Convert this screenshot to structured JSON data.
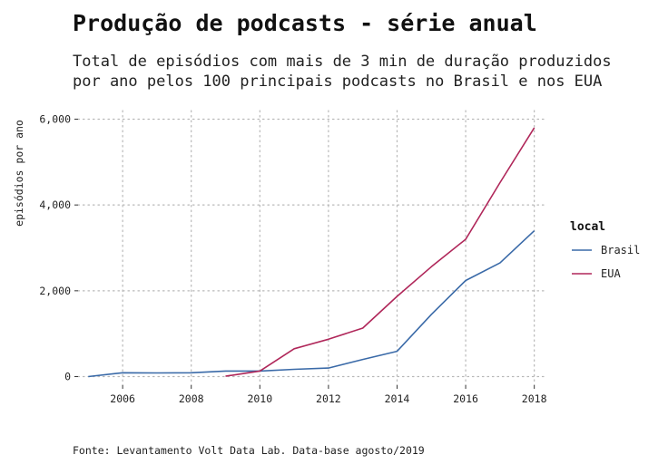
{
  "chart_data": {
    "type": "line",
    "title": "Produção de podcasts - série anual",
    "subtitle_lines": [
      "Total de episódios com mais de 3 min de duração produzidos",
      "por ano pelos 100 principais podcasts no Brasil e nos EUA"
    ],
    "caption": "Fonte: Levantamento Volt Data Lab. Data-base agosto/2019",
    "xlabel": "",
    "ylabel": "episódios por ano",
    "xlim": [
      2004.7,
      2018.3
    ],
    "ylim": [
      -200,
      6200
    ],
    "x_ticks": [
      2006,
      2008,
      2010,
      2012,
      2014,
      2016,
      2018
    ],
    "y_ticks": [
      0,
      2000,
      4000,
      6000
    ],
    "y_tick_labels": [
      "0",
      "2,000",
      "4,000",
      "6,000"
    ],
    "grid": true,
    "legend": {
      "title": "local",
      "position": "right"
    },
    "series": [
      {
        "name": "Brasil",
        "color": "#3a6aa8",
        "x": [
          2005,
          2006,
          2007,
          2008,
          2009,
          2010,
          2011,
          2012,
          2013,
          2014,
          2015,
          2016,
          2017,
          2018
        ],
        "values": [
          0,
          90,
          85,
          90,
          130,
          130,
          170,
          200,
          400,
          590,
          1450,
          2240,
          2650,
          3400
        ]
      },
      {
        "name": "EUA",
        "color": "#b0275a",
        "x": [
          2009,
          2010,
          2011,
          2012,
          2013,
          2014,
          2015,
          2016,
          2017,
          2018
        ],
        "values": [
          10,
          130,
          650,
          870,
          1130,
          1870,
          2560,
          3200,
          4520,
          5800
        ]
      }
    ]
  }
}
